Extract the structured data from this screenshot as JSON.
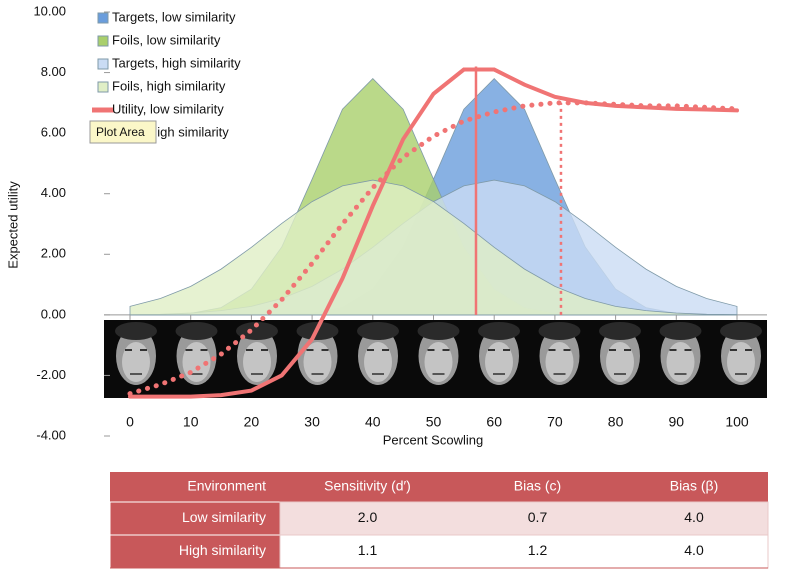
{
  "chart_data": {
    "type": "area",
    "y_label": "Expected utility",
    "x_label": "Percent Scowling",
    "x": [
      0,
      5,
      10,
      15,
      20,
      25,
      30,
      35,
      40,
      45,
      50,
      55,
      60,
      65,
      70,
      75,
      80,
      85,
      90,
      95,
      100
    ],
    "xlim": [
      0,
      100
    ],
    "xticks": [
      0,
      10,
      20,
      30,
      40,
      50,
      60,
      70,
      80,
      90,
      100
    ],
    "ylim": [
      -4,
      10
    ],
    "yticks": [
      {
        "value": -4,
        "label": "-4.00"
      },
      {
        "value": -2,
        "label": "-2.00"
      },
      {
        "value": 0,
        "label": "0.00"
      },
      {
        "value": 2,
        "label": "2.00"
      },
      {
        "value": 4,
        "label": "4.00"
      },
      {
        "value": 6,
        "label": "6.00"
      },
      {
        "value": 8,
        "label": "8.00"
      },
      {
        "value": 10,
        "label": "10.00"
      }
    ],
    "legend": "top-left",
    "tooltip": "Plot Area",
    "series": [
      {
        "name": "Targets, low similarity",
        "kind": "area",
        "color": "#6a9ddc",
        "values": [
          0,
          0,
          0,
          0,
          0,
          0,
          0.05,
          0.24,
          0.85,
          2.24,
          4.48,
          6.79,
          7.8,
          6.79,
          4.48,
          2.24,
          0.85,
          0.24,
          0.05,
          0,
          0
        ]
      },
      {
        "name": "Foils, low similarity",
        "kind": "area",
        "color": "#a9cf6c",
        "values": [
          0,
          0,
          0.05,
          0.24,
          0.85,
          2.24,
          4.48,
          6.79,
          7.8,
          6.79,
          4.48,
          2.24,
          0.85,
          0.24,
          0.05,
          0,
          0,
          0,
          0,
          0,
          0
        ]
      },
      {
        "name": "Targets, high similarity",
        "kind": "area",
        "color": "#cadcf4",
        "values": [
          0.01,
          0.02,
          0.06,
          0.14,
          0.28,
          0.54,
          0.94,
          1.51,
          2.23,
          3.02,
          3.74,
          4.26,
          4.45,
          4.26,
          3.74,
          3.02,
          2.23,
          1.51,
          0.94,
          0.54,
          0.28
        ]
      },
      {
        "name": "Foils, high similarity",
        "kind": "area",
        "color": "#e0efc6",
        "values": [
          0.28,
          0.54,
          0.94,
          1.51,
          2.23,
          3.02,
          3.74,
          4.26,
          4.45,
          4.26,
          3.74,
          3.02,
          2.23,
          1.51,
          0.94,
          0.54,
          0.28,
          0.14,
          0.06,
          0.02,
          0.01
        ]
      },
      {
        "name": "Utility, low similarity",
        "kind": "line",
        "color": "#f07474",
        "dashed": false,
        "values": [
          -2.7,
          -2.7,
          -2.7,
          -2.65,
          -2.5,
          -2.0,
          -0.8,
          1.2,
          3.6,
          5.8,
          7.3,
          8.1,
          8.1,
          7.6,
          7.2,
          7.0,
          6.9,
          6.85,
          6.8,
          6.78,
          6.75
        ],
        "criterion": {
          "x": 57,
          "y": 8.2
        }
      },
      {
        "name": "Utility, high similarity",
        "kind": "line",
        "color": "#f07474",
        "dashed": true,
        "values": [
          -2.6,
          -2.3,
          -1.9,
          -1.3,
          -0.5,
          0.5,
          1.7,
          3.0,
          4.2,
          5.2,
          5.9,
          6.4,
          6.7,
          6.9,
          7.0,
          7.0,
          6.95,
          6.9,
          6.9,
          6.85,
          6.8
        ],
        "criterion": {
          "x": 71,
          "y": 7.0
        }
      }
    ]
  },
  "table": {
    "header": [
      "Environment",
      "Sensitivity (d′)",
      "Bias (c)",
      "Bias (β)"
    ],
    "rows": [
      [
        "Low similarity",
        "2.0",
        "0.7",
        "4.0"
      ],
      [
        "High similarity",
        "1.1",
        "1.2",
        "4.0"
      ]
    ]
  }
}
